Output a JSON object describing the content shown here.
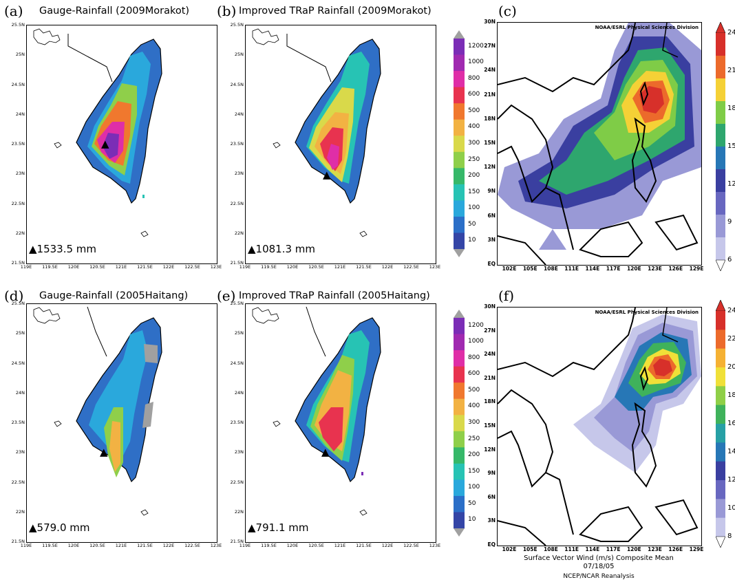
{
  "panels": {
    "a": {
      "label": "(a)",
      "title": "Gauge-Rainfall (2009Morakot)",
      "marker_value": "1533.5 mm"
    },
    "b": {
      "label": "(b)",
      "title": "Improved TRaP Rainfall (2009Morakot)",
      "marker_value": "1081.3 mm"
    },
    "c": {
      "label": "(c)",
      "credit": "NOAA/ESRL Physical Sciences Division"
    },
    "d": {
      "label": "(d)",
      "title": "Gauge-Rainfall (2005Haitang)",
      "marker_value": "579.0 mm"
    },
    "e": {
      "label": "(e)",
      "title": "Improved TRaP Rainfall (2005Haitang)",
      "marker_value": "791.1 mm"
    },
    "f": {
      "label": "(f)",
      "credit": "NOAA/ESRL Physical Sciences Division",
      "caption_line1": "Surface Vector Wind (m/s) Composite Mean",
      "caption_line2": "07/18/05",
      "caption_line3": "NCEP/NCAR Reanalysis"
    }
  },
  "taiwan_axes": {
    "lat_ticks": [
      "25.5N",
      "25N",
      "24.5N",
      "24N",
      "23.5N",
      "23N",
      "22.5N",
      "22N",
      "21.5N"
    ],
    "lon_ticks": [
      "119E",
      "119.5E",
      "120E",
      "120.5E",
      "121E",
      "121.5E",
      "122E",
      "122.5E",
      "123E"
    ]
  },
  "wind_axes": {
    "lat_ticks": [
      "30N",
      "27N",
      "24N",
      "21N",
      "18N",
      "15N",
      "12N",
      "9N",
      "6N",
      "3N",
      "EQ"
    ],
    "lon_ticks": [
      "102E",
      "105E",
      "108E",
      "111E",
      "114E",
      "117E",
      "120E",
      "123E",
      "126E",
      "129E"
    ]
  },
  "rain_colorbar": {
    "levels": [
      "1200",
      "1000",
      "800",
      "600",
      "500",
      "400",
      "300",
      "250",
      "200",
      "150",
      "100",
      "50",
      "10"
    ],
    "colors": [
      "#7b2db6",
      "#a02ab0",
      "#df2ea7",
      "#e8334f",
      "#f0782e",
      "#f2b243",
      "#d9d94a",
      "#8fcf4a",
      "#36b869",
      "#27c3b4",
      "#2aa8dc",
      "#2b6fc8",
      "#3445a6"
    ]
  },
  "wind_colorbar_c": {
    "labels": [
      "24",
      "21",
      "18",
      "15",
      "12",
      "9",
      "6"
    ],
    "colors": [
      "#d7302a",
      "#ec6a2b",
      "#f5d136",
      "#7fcc47",
      "#2ea66e",
      "#2777b6",
      "#3a3fa0",
      "#6867c0",
      "#9999d6",
      "#c6c7ea"
    ]
  },
  "wind_colorbar_f": {
    "labels": [
      "24",
      "22",
      "20",
      "18",
      "16",
      "14",
      "12",
      "10",
      "8"
    ],
    "colors": [
      "#d7302a",
      "#ec6a2b",
      "#f5b133",
      "#f0e038",
      "#8fcf47",
      "#3fb25b",
      "#27a0a5",
      "#2777b6",
      "#3a3fa0",
      "#6867c0",
      "#9999d6",
      "#c6c7ea"
    ]
  }
}
